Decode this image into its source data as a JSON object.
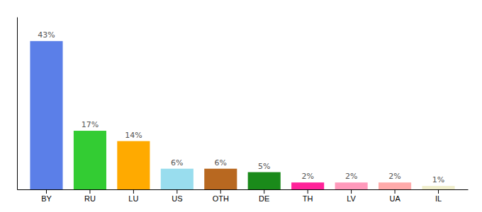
{
  "chart_data": {
    "type": "bar",
    "categories": [
      "BY",
      "RU",
      "LU",
      "US",
      "OTH",
      "DE",
      "TH",
      "LV",
      "UA",
      "IL"
    ],
    "values": [
      43,
      17,
      14,
      6,
      6,
      5,
      2,
      2,
      2,
      1
    ],
    "value_labels": [
      "43%",
      "17%",
      "14%",
      "6%",
      "6%",
      "5%",
      "2%",
      "2%",
      "2%",
      "1%"
    ],
    "colors": [
      "#5b7fe8",
      "#33cc33",
      "#ffaa00",
      "#99ddee",
      "#b86820",
      "#1a8a1a",
      "#ff2299",
      "#ff99bb",
      "#ffaaaa",
      "#f0eecc"
    ],
    "ylim": [
      0,
      50
    ],
    "data_labels": true,
    "tick_labels": "x",
    "grid": false
  }
}
